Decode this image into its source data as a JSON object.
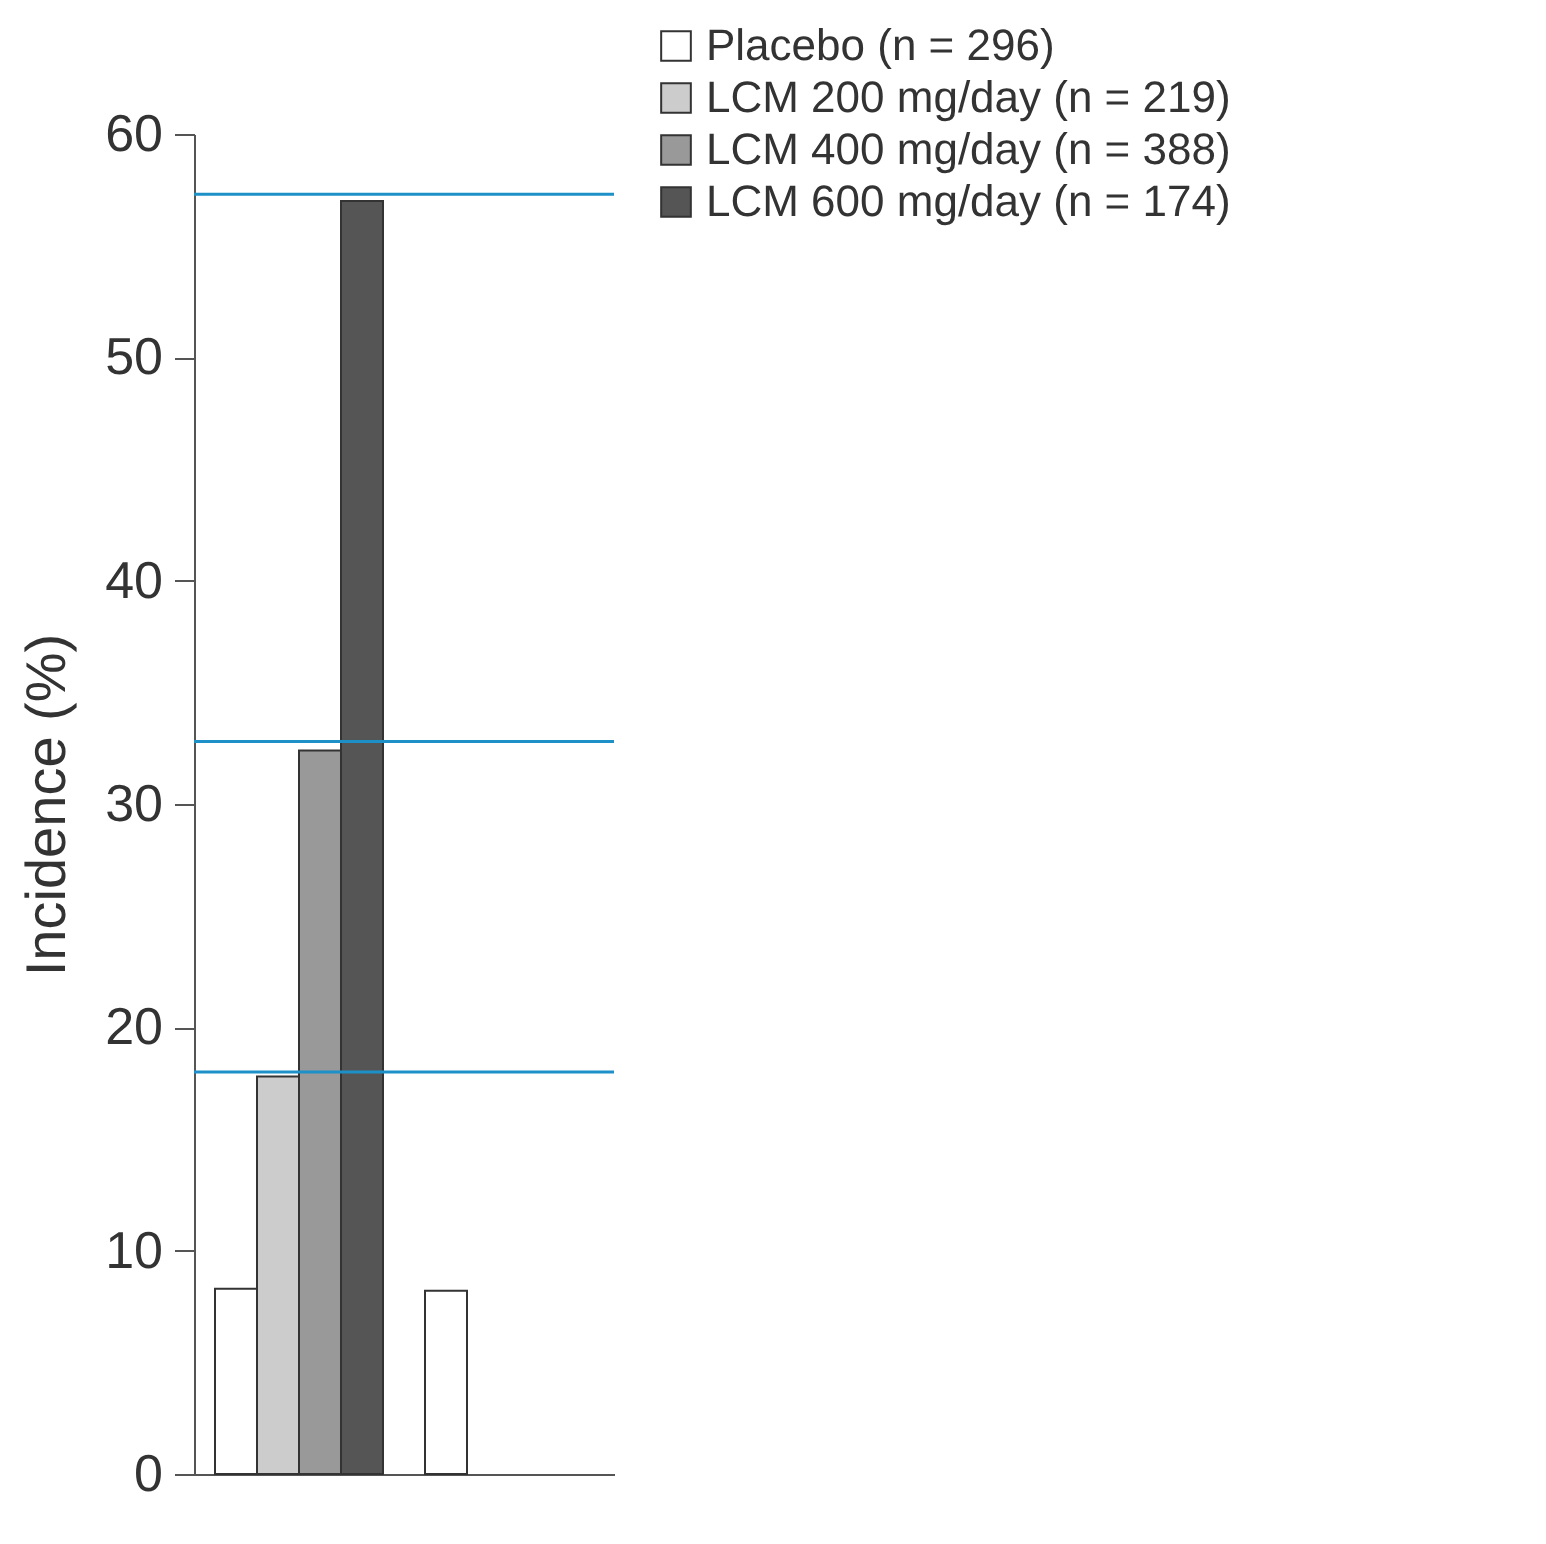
{
  "chart_data": {
    "type": "bar",
    "ylabel": "Incidence (%)",
    "categories": [
      null,
      null
    ],
    "series": [
      {
        "name": "Placebo (n = 296)",
        "color": "#ffffff",
        "values": [
          8.3,
          8.2
        ]
      },
      {
        "name": "LCM 200 mg/day (n = 219)",
        "color": "#cccccc",
        "values": [
          17.8,
          null
        ]
      },
      {
        "name": "LCM 400 mg/day (n = 388)",
        "color": "#999999",
        "values": [
          32.4,
          null
        ]
      },
      {
        "name": "LCM 600 mg/day (n = 174)",
        "color": "#555555",
        "values": [
          57.0,
          null
        ]
      }
    ],
    "ylim": [
      0,
      60
    ],
    "yticks": [
      0,
      10,
      20,
      30,
      40,
      50,
      60
    ],
    "ref_lines": [
      {
        "axis": "y",
        "value": 57.3,
        "color": "#1e90c8"
      },
      {
        "axis": "y",
        "value": 32.8,
        "color": "#1e90c8"
      },
      {
        "axis": "y",
        "value": 18.0,
        "color": "#1e90c8"
      }
    ],
    "legend": "top right",
    "grid": false
  }
}
